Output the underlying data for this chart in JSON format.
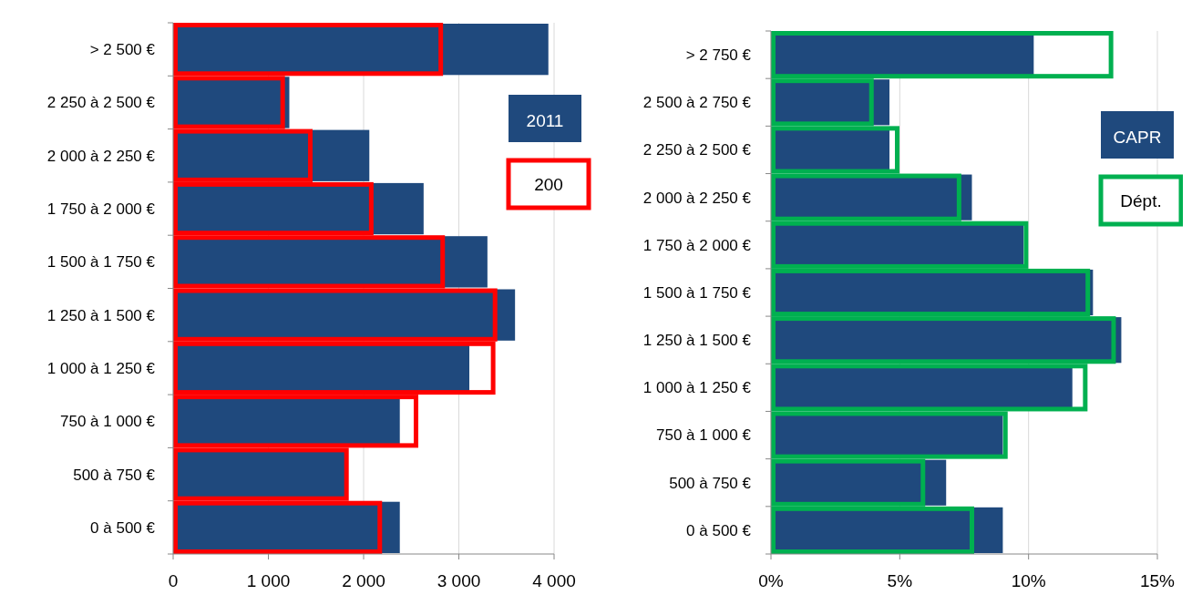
{
  "chart_data": [
    {
      "type": "bar",
      "orientation": "horizontal",
      "categories": [
        "> 2 500 €",
        "2 250 à 2 500 €",
        "2 000 à 2 250 €",
        "1 750 à 2 000 €",
        "1 500 à 1 750 €",
        "1 250 à 1 500 €",
        "1 000 à 1 250 €",
        "750 à 1 000 €",
        "500 à 750 €",
        "0 à 500 €"
      ],
      "series": [
        {
          "name": "2011",
          "color": "#1f497d",
          "values": [
            3940,
            1220,
            2060,
            2630,
            3300,
            3590,
            3110,
            2380,
            1820,
            2380
          ]
        },
        {
          "name": "200",
          "color": "#ff0000",
          "values": [
            2810,
            1150,
            1440,
            2080,
            2830,
            3380,
            3360,
            2550,
            1820,
            2170
          ]
        }
      ],
      "xlim": [
        0,
        4000
      ],
      "xticks": [
        0,
        {
          "value": 1000,
          "label": "1 000"
        },
        {
          "value": 2000,
          "label": "2 000"
        },
        {
          "value": 3000,
          "label": "3 000"
        },
        {
          "value": 4000,
          "label": "4 000"
        }
      ],
      "grid": "x",
      "legend": "right"
    },
    {
      "type": "bar",
      "orientation": "horizontal",
      "categories": [
        "> 2 750 €",
        "2 500 à 2 750 €",
        "2 250 à 2 500 €",
        "2 000 à 2 250 €",
        "1 750 à 2 000 €",
        "1 500 à 1 750 €",
        "1 250 à 1 500 €",
        "1 000 à 1 250 €",
        "750 à 1 000 €",
        "500 à 750 €",
        "0 à 500 €"
      ],
      "series": [
        {
          "name": "CAPR",
          "color": "#1f497d",
          "values": [
            10.2,
            4.6,
            4.6,
            7.8,
            9.8,
            12.5,
            13.6,
            11.7,
            9.0,
            6.8,
            9.0
          ]
        },
        {
          "name": "Dépt.",
          "color": "#00b050",
          "values": [
            13.2,
            3.9,
            4.9,
            7.3,
            9.9,
            12.3,
            13.3,
            12.2,
            9.1,
            5.9,
            7.8
          ]
        }
      ],
      "xlim": [
        0,
        15
      ],
      "xticks": [
        {
          "value": 0,
          "label": "0%"
        },
        {
          "value": 5,
          "label": "5%"
        },
        {
          "value": 10,
          "label": "10%"
        },
        {
          "value": 15,
          "label": "15%"
        }
      ],
      "grid": "x",
      "legend": "right"
    }
  ]
}
